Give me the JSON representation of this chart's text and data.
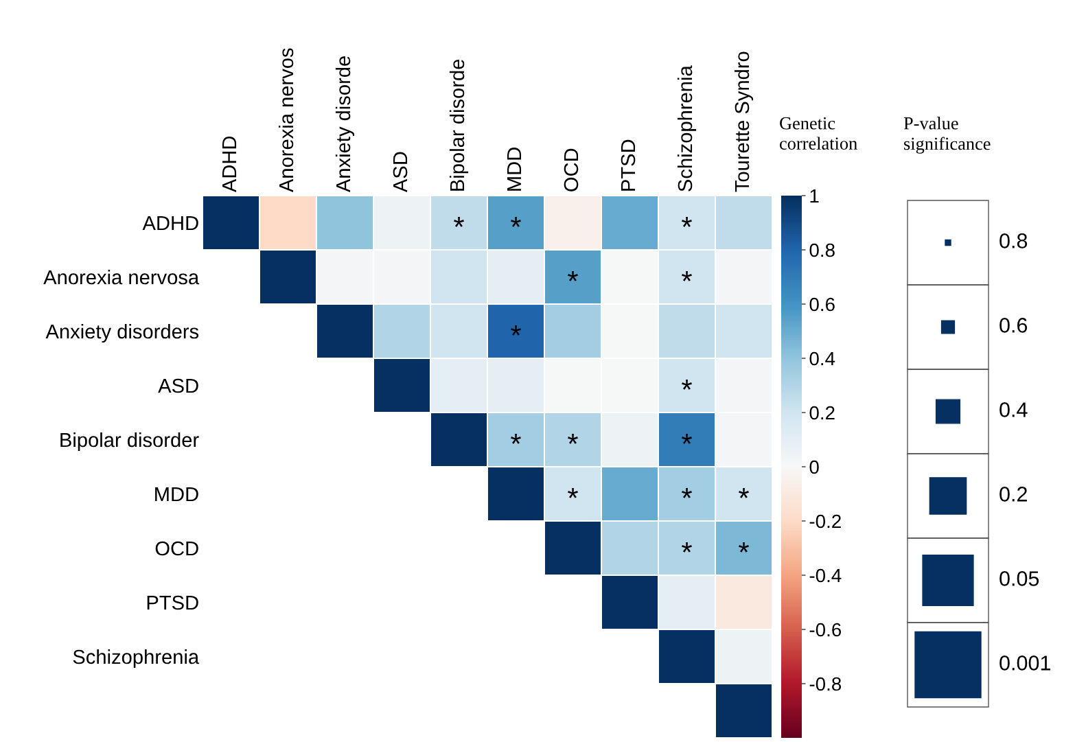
{
  "chart_data": {
    "type": "heatmap",
    "clabel": "Genetic correlation",
    "categories": [
      "ADHD",
      "Anorexia nervos",
      "Anxiety disorde",
      "ASD",
      "Bipolar disorde",
      "MDD",
      "OCD",
      "PTSD",
      "Schizophrenia",
      "Tourette Syndro"
    ],
    "y_categories": [
      "ADHD",
      "Anorexia nervosa",
      "Anxiety disorders",
      "ASD",
      "Bipolar disorder",
      "MDD",
      "OCD",
      "PTSD",
      "Schizophrenia",
      null
    ],
    "cells": [
      [
        1,
        -0.2,
        0.4,
        0.05,
        0.25,
        0.55,
        -0.05,
        0.5,
        0.2,
        0.25
      ],
      [
        null,
        1,
        0.02,
        0.02,
        0.2,
        0.1,
        0.55,
        0.0,
        0.2,
        0.02
      ],
      [
        null,
        null,
        1,
        0.3,
        0.2,
        0.8,
        0.35,
        0.0,
        0.25,
        0.2
      ],
      [
        null,
        null,
        null,
        1,
        0.1,
        0.1,
        0.0,
        0.0,
        0.2,
        0.02
      ],
      [
        null,
        null,
        null,
        null,
        1,
        0.35,
        0.3,
        0.05,
        0.7,
        0.02
      ],
      [
        null,
        null,
        null,
        null,
        null,
        1,
        0.2,
        0.5,
        0.35,
        0.2
      ],
      [
        null,
        null,
        null,
        null,
        null,
        null,
        1,
        0.3,
        0.3,
        0.45
      ],
      [
        null,
        null,
        null,
        null,
        null,
        null,
        null,
        1,
        0.1,
        -0.1
      ],
      [
        null,
        null,
        null,
        null,
        null,
        null,
        null,
        null,
        1,
        0.05
      ],
      [
        null,
        null,
        null,
        null,
        null,
        null,
        null,
        null,
        null,
        1
      ]
    ],
    "cell_labels": [
      [
        null,
        null,
        null,
        null,
        "*",
        "*",
        null,
        null,
        "*",
        null
      ],
      [
        null,
        null,
        null,
        null,
        null,
        null,
        "*",
        null,
        "*",
        null
      ],
      [
        null,
        null,
        null,
        null,
        null,
        "*",
        null,
        null,
        null,
        null
      ],
      [
        null,
        null,
        null,
        null,
        null,
        null,
        null,
        null,
        "*",
        null
      ],
      [
        null,
        null,
        null,
        null,
        null,
        "*",
        "*",
        null,
        "*",
        null
      ],
      [
        null,
        null,
        null,
        null,
        null,
        null,
        "*",
        null,
        "*",
        "*"
      ],
      [
        null,
        null,
        null,
        null,
        null,
        null,
        null,
        null,
        "*",
        "*"
      ],
      [
        null,
        null,
        null,
        null,
        null,
        null,
        null,
        null,
        null,
        null
      ],
      [
        null,
        null,
        null,
        null,
        null,
        null,
        null,
        null,
        null,
        null
      ],
      [
        null,
        null,
        null,
        null,
        null,
        null,
        null,
        null,
        null,
        null
      ]
    ],
    "clim": [
      -1,
      1
    ],
    "cticks": [
      1,
      0.8,
      0.6,
      0.4,
      0.2,
      0,
      -0.2,
      -0.4,
      -0.6,
      -0.8
    ],
    "annotations": [
      "P-value significance",
      "0.8",
      "0.6",
      "0.4",
      "0.2",
      "0.05",
      "0.001"
    ]
  }
}
